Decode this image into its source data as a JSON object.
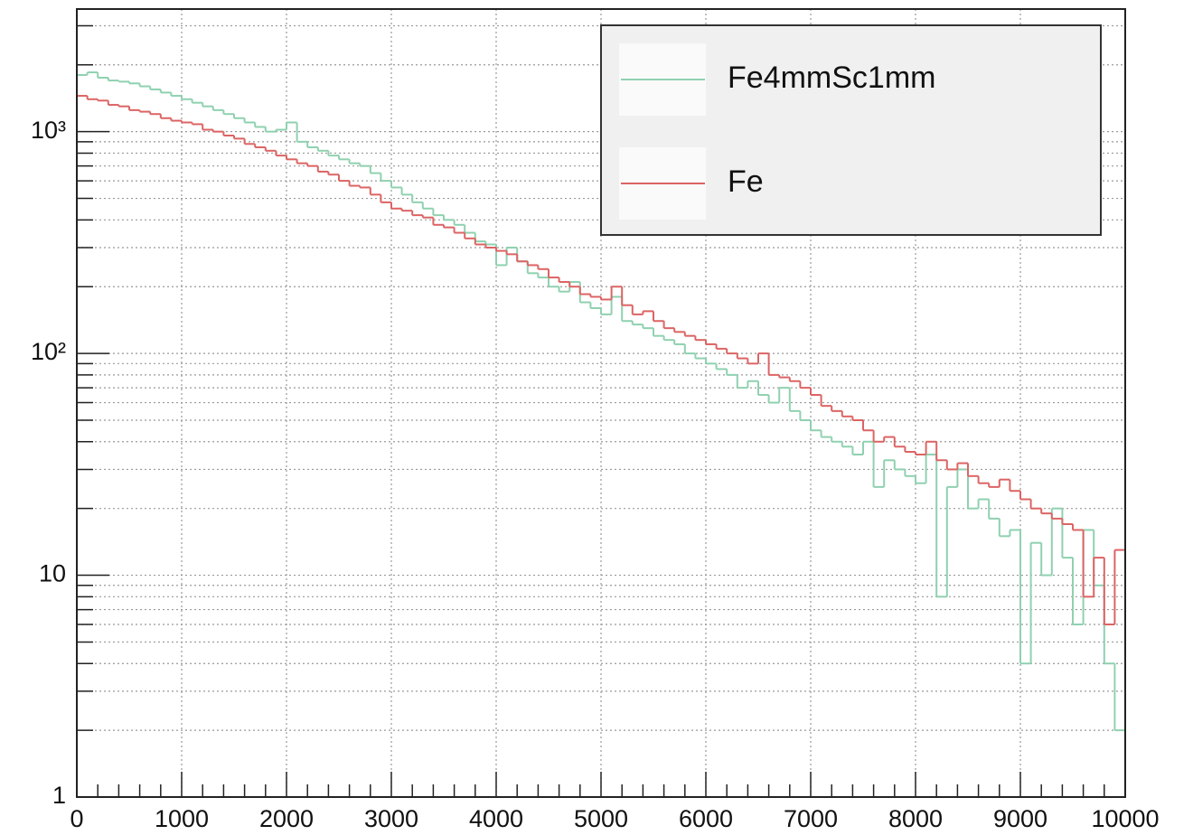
{
  "chart_data": {
    "type": "histogram",
    "bins": [
      0,
      100,
      200,
      300,
      400,
      500,
      600,
      700,
      800,
      900,
      1000,
      1100,
      1200,
      1300,
      1400,
      1500,
      1600,
      1700,
      1800,
      1900,
      2000,
      2100,
      2200,
      2300,
      2400,
      2500,
      2600,
      2700,
      2800,
      2900,
      3000,
      3100,
      3200,
      3300,
      3400,
      3500,
      3600,
      3700,
      3800,
      3900,
      4000,
      4100,
      4200,
      4300,
      4400,
      4500,
      4600,
      4700,
      4800,
      4900,
      5000,
      5100,
      5200,
      5300,
      5400,
      5500,
      5600,
      5700,
      5800,
      5900,
      6000,
      6100,
      6200,
      6300,
      6400,
      6500,
      6600,
      6700,
      6800,
      6900,
      7000,
      7100,
      7200,
      7300,
      7400,
      7500,
      7600,
      7700,
      7800,
      7900,
      8000,
      8100,
      8200,
      8300,
      8400,
      8500,
      8600,
      8700,
      8800,
      8900,
      9000,
      9100,
      9200,
      9300,
      9400,
      9500,
      9600,
      9700,
      9800,
      9900,
      10000
    ],
    "series": [
      {
        "name": "Fe4mmSc1mm",
        "color": "#8fd1b0",
        "values": [
          1800,
          1850,
          1750,
          1700,
          1680,
          1650,
          1600,
          1550,
          1500,
          1450,
          1400,
          1350,
          1300,
          1250,
          1200,
          1150,
          1100,
          1050,
          1000,
          1020,
          1100,
          900,
          850,
          820,
          780,
          750,
          720,
          700,
          650,
          600,
          560,
          520,
          480,
          450,
          420,
          400,
          380,
          350,
          320,
          310,
          250,
          300,
          260,
          230,
          220,
          200,
          190,
          210,
          170,
          160,
          150,
          180,
          140,
          135,
          130,
          120,
          115,
          110,
          100,
          95,
          90,
          85,
          80,
          70,
          75,
          65,
          60,
          70,
          55,
          50,
          45,
          42,
          40,
          38,
          35,
          40,
          25,
          33,
          30,
          28,
          26,
          35,
          8,
          25,
          30,
          20,
          22,
          18,
          15,
          16,
          4,
          14,
          10,
          20,
          12,
          6,
          16,
          9,
          4,
          2
        ]
      },
      {
        "name": "Fe",
        "color": "#dc6464",
        "values": [
          1450,
          1400,
          1380,
          1320,
          1300,
          1250,
          1230,
          1200,
          1150,
          1120,
          1100,
          1080,
          1020,
          1000,
          960,
          930,
          880,
          850,
          820,
          780,
          750,
          720,
          700,
          660,
          640,
          600,
          570,
          560,
          520,
          480,
          450,
          440,
          420,
          410,
          380,
          370,
          350,
          330,
          310,
          300,
          290,
          280,
          260,
          250,
          240,
          220,
          210,
          200,
          185,
          180,
          175,
          200,
          165,
          150,
          155,
          140,
          130,
          125,
          120,
          115,
          110,
          105,
          100,
          95,
          90,
          100,
          80,
          78,
          75,
          70,
          65,
          58,
          55,
          52,
          50,
          45,
          40,
          42,
          38,
          36,
          35,
          40,
          33,
          30,
          32,
          28,
          26,
          25,
          27,
          24,
          22,
          20,
          19,
          18,
          17,
          16,
          8,
          12,
          6,
          13
        ]
      }
    ],
    "xlim": [
      0,
      10000
    ],
    "xticks": [
      0,
      1000,
      2000,
      3000,
      4000,
      5000,
      6000,
      7000,
      8000,
      9000,
      10000
    ],
    "xminorticks": [
      200,
      400,
      600,
      800,
      1200,
      1400,
      1600,
      1800,
      2200,
      2400,
      2600,
      2800,
      3200,
      3400,
      3600,
      3800,
      4200,
      4400,
      4600,
      4800,
      5200,
      5400,
      5600,
      5800,
      6200,
      6400,
      6600,
      6800,
      7200,
      7400,
      7600,
      7800,
      8200,
      8400,
      8600,
      8800,
      9200,
      9400,
      9600,
      9800
    ],
    "ylim": [
      1,
      3570
    ],
    "ylog": true,
    "yticks": [
      1,
      10,
      {
        "value": 100,
        "label": "10²"
      },
      {
        "value": 1000,
        "label": "10³"
      }
    ],
    "yminorticks": [
      2,
      3,
      4,
      5,
      6,
      7,
      8,
      9,
      20,
      30,
      40,
      50,
      60,
      70,
      80,
      90,
      200,
      300,
      400,
      500,
      600,
      700,
      800,
      900,
      2000,
      3000
    ],
    "grid": true,
    "legend": "top-right"
  }
}
